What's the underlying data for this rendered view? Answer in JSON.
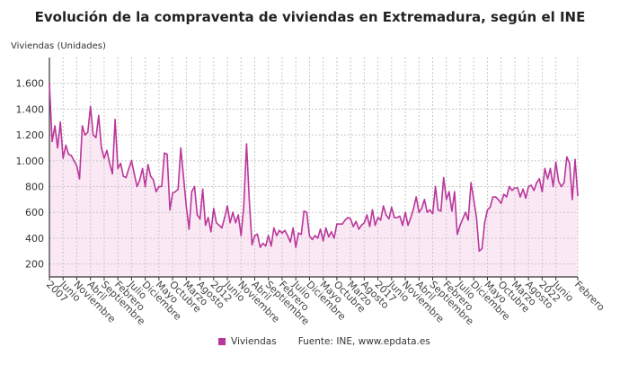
{
  "chart_data": {
    "type": "area",
    "title": "Evolución de la compraventa de viviendas en Extremadura, según el INE",
    "ylabel": "Viviendas (Unidades)",
    "xlabel": "",
    "ylim": [
      100,
      1800
    ],
    "yticks": [
      200,
      400,
      600,
      800,
      1000,
      1200,
      1400,
      1600
    ],
    "ytick_labels": [
      "200",
      "400",
      "600",
      "800",
      "1.000",
      "1.200",
      "1.400",
      "1.600"
    ],
    "grid": true,
    "legend_position": "bottom",
    "x_start": "2007-01",
    "x_end": "2023-02",
    "x_tick_labels": [
      "2007",
      "Junio",
      "Noviembre",
      "Abril",
      "Septiembre",
      "Febrero",
      "Julio",
      "Diciembre",
      "Mayo",
      "Octubre",
      "Marzo",
      "Agosto",
      "2012",
      "Junio",
      "Noviembre",
      "Abril",
      "Septiembre",
      "Febrero",
      "Julio",
      "Diciembre",
      "Mayo",
      "Octubre",
      "Marzo",
      "Agosto",
      "2017",
      "Junio",
      "Noviembre",
      "Abril",
      "Septiembre",
      "Febrero",
      "Julio",
      "Diciembre",
      "Mayo",
      "Octubre",
      "Marzo",
      "Agosto",
      "2022",
      "Junio",
      "Febrero"
    ],
    "series": [
      {
        "name": "Viviendas",
        "color": "#b9379b",
        "fill": "#fbe8f5",
        "values": [
          1600,
          1150,
          1270,
          1100,
          1300,
          1020,
          1120,
          1050,
          1040,
          1000,
          960,
          860,
          1270,
          1200,
          1220,
          1420,
          1200,
          1180,
          1350,
          1100,
          1020,
          1080,
          980,
          900,
          1320,
          940,
          980,
          880,
          870,
          940,
          1000,
          900,
          800,
          850,
          940,
          800,
          970,
          880,
          850,
          760,
          800,
          800,
          1060,
          1050,
          620,
          750,
          760,
          780,
          1100,
          870,
          650,
          470,
          760,
          800,
          580,
          550,
          780,
          500,
          560,
          450,
          630,
          520,
          500,
          480,
          560,
          650,
          520,
          600,
          520,
          580,
          420,
          650,
          1130,
          700,
          350,
          420,
          430,
          330,
          360,
          340,
          420,
          340,
          480,
          420,
          460,
          440,
          460,
          420,
          370,
          480,
          330,
          440,
          430,
          610,
          600,
          420,
          390,
          420,
          400,
          470,
          380,
          480,
          410,
          450,
          400,
          510,
          510,
          510,
          540,
          560,
          550,
          490,
          530,
          470,
          500,
          520,
          580,
          490,
          620,
          500,
          560,
          540,
          650,
          580,
          550,
          640,
          560,
          560,
          570,
          500,
          600,
          500,
          560,
          630,
          720,
          600,
          630,
          700,
          600,
          620,
          590,
          800,
          620,
          610,
          870,
          700,
          760,
          610,
          760,
          430,
          500,
          550,
          600,
          540,
          830,
          700,
          560,
          300,
          320,
          520,
          620,
          640,
          720,
          720,
          700,
          670,
          740,
          720,
          800,
          770,
          790,
          790,
          720,
          780,
          710,
          800,
          810,
          770,
          830,
          860,
          760,
          940,
          860,
          940,
          800,
          990,
          840,
          800,
          830,
          1030,
          980,
          700,
          1010,
          730
        ]
      }
    ],
    "source": "Fuente: INE, www.epdata.es"
  }
}
